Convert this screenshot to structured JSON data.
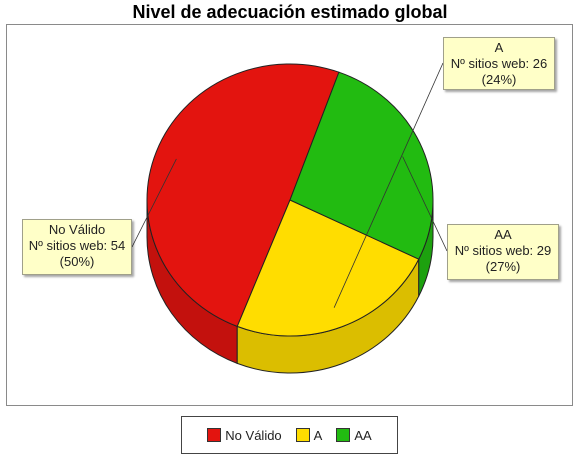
{
  "chart_data": {
    "type": "pie",
    "title": "Nivel de adecuación estimado global",
    "slices": [
      {
        "label": "No Válido",
        "value": 54,
        "percent": 50,
        "color": "#e3140f",
        "line1": "No Válido",
        "line2": "Nº sitios web: 54",
        "line3": "(50%)"
      },
      {
        "label": "A",
        "value": 26,
        "percent": 24,
        "color": "#ffdd00",
        "line1": "A",
        "line2": "Nº sitios web: 26",
        "line3": "(24%)"
      },
      {
        "label": "AA",
        "value": 29,
        "percent": 27,
        "color": "#22bb11",
        "line1": "AA",
        "line2": "Nº sitios web: 29",
        "line3": "(27%)"
      }
    ],
    "legend": {
      "placement": "bottom",
      "items": [
        "No Válido",
        "A",
        "AA"
      ]
    }
  }
}
